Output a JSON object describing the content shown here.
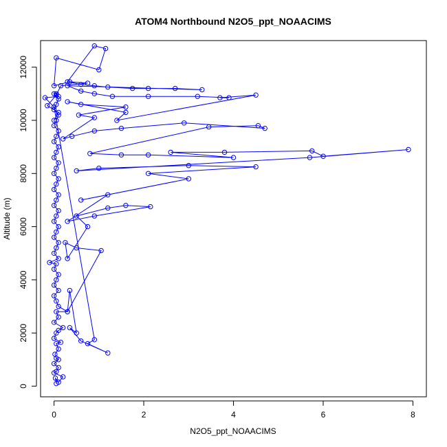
{
  "chart_data": {
    "type": "scatter",
    "title": "ATOM4 Northbound N2O5_ppt_NOAACIMS",
    "xlabel": "N2O5_ppt_NOAACIMS",
    "ylabel": "Altitude (m)",
    "xlim": [
      -0.3,
      8.3
    ],
    "ylim": [
      -400,
      13000
    ],
    "x_ticks": [
      0,
      2,
      4,
      6,
      8
    ],
    "y_ticks": [
      0,
      2000,
      4000,
      6000,
      8000,
      10000,
      12000
    ],
    "grid": false,
    "connected": true,
    "series_color": "#0000ff",
    "points": [
      [
        0.05,
        100
      ],
      [
        0.03,
        300
      ],
      [
        0.1,
        150
      ],
      [
        0.2,
        350
      ],
      [
        0.0,
        500
      ],
      [
        0.05,
        550
      ],
      [
        0.1,
        700
      ],
      [
        0.0,
        850
      ],
      [
        0.1,
        1000
      ],
      [
        0.05,
        1050
      ],
      [
        0.02,
        1200
      ],
      [
        0.1,
        1400
      ],
      [
        0.05,
        1600
      ],
      [
        0.15,
        1650
      ],
      [
        0.0,
        1800
      ],
      [
        0.05,
        2000
      ],
      [
        0.1,
        2100
      ],
      [
        0.2,
        2200
      ],
      [
        0.0,
        2400
      ],
      [
        0.1,
        2600
      ],
      [
        0.05,
        2800
      ],
      [
        0.3,
        2800
      ],
      [
        0.1,
        3000
      ],
      [
        0.05,
        3200
      ],
      [
        0.0,
        3400
      ],
      [
        0.1,
        3600
      ],
      [
        0.0,
        3800
      ],
      [
        0.05,
        4000
      ],
      [
        0.1,
        4200
      ],
      [
        0.0,
        4400
      ],
      [
        0.05,
        4600
      ],
      [
        -0.1,
        4650
      ],
      [
        0.1,
        4800
      ],
      [
        0.0,
        5000
      ],
      [
        0.05,
        5200
      ],
      [
        0.1,
        5400
      ],
      [
        0.0,
        5600
      ],
      [
        0.05,
        5800
      ],
      [
        0.1,
        6000
      ],
      [
        0.0,
        6200
      ],
      [
        0.05,
        6400
      ],
      [
        0.1,
        6600
      ],
      [
        0.0,
        6800
      ],
      [
        0.05,
        7000
      ],
      [
        0.1,
        7200
      ],
      [
        0.0,
        7400
      ],
      [
        0.05,
        7600
      ],
      [
        0.1,
        7800
      ],
      [
        0.0,
        8000
      ],
      [
        0.05,
        8200
      ],
      [
        0.1,
        8400
      ],
      [
        0.0,
        8600
      ],
      [
        0.05,
        8800
      ],
      [
        0.1,
        9000
      ],
      [
        0.0,
        9200
      ],
      [
        0.05,
        9400
      ],
      [
        0.1,
        9600
      ],
      [
        0.0,
        9800
      ],
      [
        0.05,
        10000
      ],
      [
        0.1,
        10200
      ],
      [
        0.0,
        10400
      ],
      [
        0.05,
        10600
      ],
      [
        0.1,
        10800
      ],
      [
        0.0,
        11000
      ],
      [
        0.05,
        11000
      ],
      [
        0.1,
        10900
      ],
      [
        -0.2,
        10850
      ],
      [
        0.0,
        10500
      ],
      [
        0.9,
        1750
      ],
      [
        0.75,
        1600
      ],
      [
        1.2,
        1250
      ],
      [
        0.6,
        1700
      ],
      [
        0.35,
        2200
      ],
      [
        0.5,
        2000
      ],
      [
        0.35,
        3600
      ],
      [
        0.3,
        2800
      ],
      [
        1.05,
        5100
      ],
      [
        0.5,
        5200
      ],
      [
        0.25,
        5400
      ],
      [
        0.3,
        4800
      ],
      [
        0.75,
        6000
      ],
      [
        0.5,
        6400
      ],
      [
        1.2,
        6700
      ],
      [
        1.6,
        6800
      ],
      [
        2.15,
        6750
      ],
      [
        0.9,
        6400
      ],
      [
        0.3,
        6200
      ],
      [
        1.2,
        7200
      ],
      [
        0.6,
        7000
      ],
      [
        3.0,
        7800
      ],
      [
        2.1,
        8000
      ],
      [
        4.5,
        8250
      ],
      [
        3.0,
        8300
      ],
      [
        1.0,
        8200
      ],
      [
        0.5,
        8100
      ],
      [
        5.7,
        8600
      ],
      [
        7.9,
        8900
      ],
      [
        6.0,
        8650
      ],
      [
        5.75,
        8850
      ],
      [
        3.8,
        8800
      ],
      [
        2.6,
        8800
      ],
      [
        4.0,
        8600
      ],
      [
        2.1,
        8700
      ],
      [
        1.5,
        8700
      ],
      [
        0.8,
        8750
      ],
      [
        3.45,
        9750
      ],
      [
        4.55,
        9800
      ],
      [
        4.7,
        9700
      ],
      [
        2.9,
        9900
      ],
      [
        1.5,
        9700
      ],
      [
        0.9,
        9600
      ],
      [
        0.4,
        9400
      ],
      [
        0.2,
        9300
      ],
      [
        0.9,
        10100
      ],
      [
        0.55,
        10200
      ],
      [
        1.6,
        10500
      ],
      [
        0.6,
        10600
      ],
      [
        0.3,
        10700
      ],
      [
        1.6,
        10300
      ],
      [
        1.4,
        10000
      ],
      [
        4.5,
        10950
      ],
      [
        3.7,
        10850
      ],
      [
        3.9,
        10850
      ],
      [
        3.2,
        10900
      ],
      [
        2.1,
        10900
      ],
      [
        1.3,
        10900
      ],
      [
        0.9,
        11000
      ],
      [
        0.6,
        11100
      ],
      [
        0.3,
        11300
      ],
      [
        3.3,
        11150
      ],
      [
        2.7,
        11200
      ],
      [
        2.1,
        11200
      ],
      [
        1.75,
        11200
      ],
      [
        1.2,
        11250
      ],
      [
        0.9,
        11300
      ],
      [
        0.6,
        11350
      ],
      [
        0.3,
        11450
      ],
      [
        0.9,
        12800
      ],
      [
        1.15,
        12700
      ],
      [
        1.0,
        11900
      ],
      [
        0.05,
        12350
      ],
      [
        0.0,
        11300
      ],
      [
        0.35,
        11450
      ],
      [
        0.75,
        11400
      ],
      [
        0.15,
        11300
      ],
      [
        0.05,
        10950
      ],
      [
        -0.15,
        10550
      ],
      [
        0.1,
        10300
      ],
      [
        0.0,
        10000
      ]
    ]
  }
}
